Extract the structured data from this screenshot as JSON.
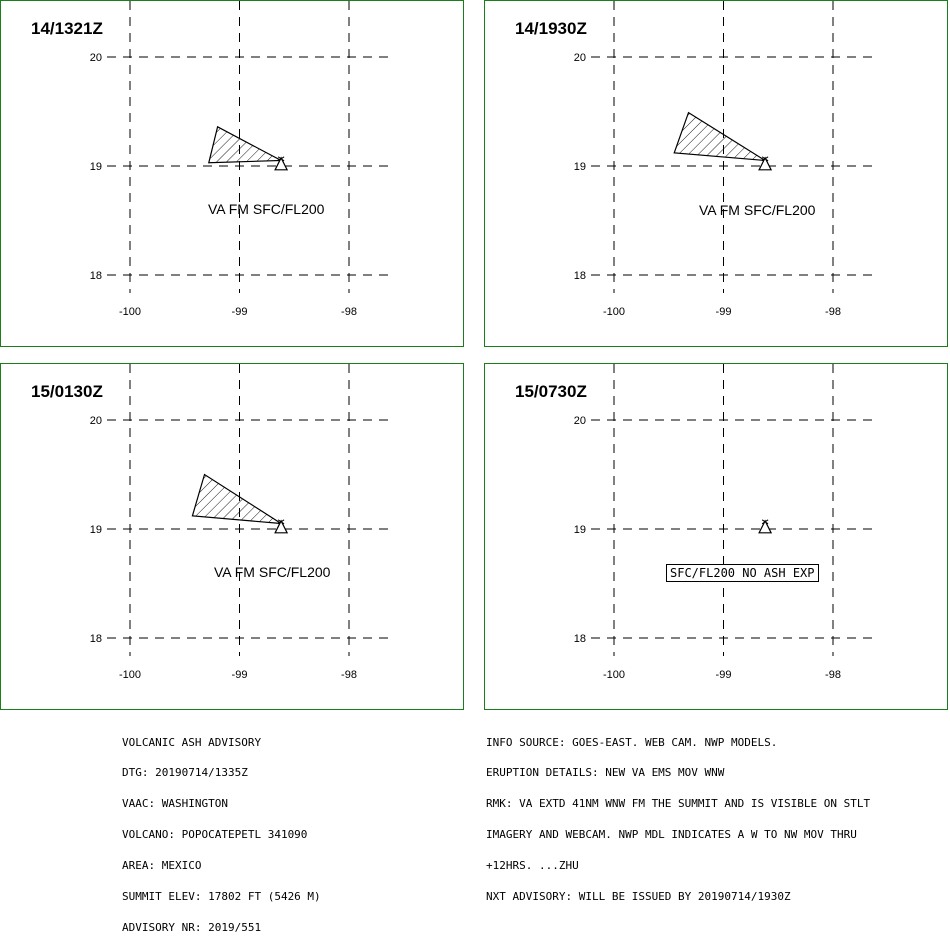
{
  "panels": [
    {
      "time": "14/1321Z",
      "lat_ticks": [
        "20",
        "19",
        "18"
      ],
      "lon_ticks": [
        "-100",
        "-99",
        "-98"
      ],
      "label": "VA FM SFC/FL200",
      "ash_polygon": [
        [
          -99.28,
          19.03
        ],
        [
          -99.2,
          19.36
        ],
        [
          -98.62,
          19.05
        ]
      ],
      "volcano": [
        -98.62,
        19.02
      ]
    },
    {
      "time": "14/1930Z",
      "lat_ticks": [
        "20",
        "19",
        "18"
      ],
      "lon_ticks": [
        "-100",
        "-99",
        "-98"
      ],
      "label": "VA FM SFC/FL200",
      "ash_polygon": [
        [
          -99.45,
          19.12
        ],
        [
          -99.32,
          19.49
        ],
        [
          -98.62,
          19.05
        ]
      ],
      "volcano": [
        -98.62,
        19.02
      ]
    },
    {
      "time": "15/0130Z",
      "lat_ticks": [
        "20",
        "19",
        "18"
      ],
      "lon_ticks": [
        "-100",
        "-99",
        "-98"
      ],
      "label": "VA FM SFC/FL200",
      "ash_polygon": [
        [
          -99.43,
          19.12
        ],
        [
          -99.32,
          19.5
        ],
        [
          -98.62,
          19.05
        ]
      ],
      "volcano": [
        -98.62,
        19.02
      ]
    },
    {
      "time": "15/0730Z",
      "lat_ticks": [
        "20",
        "19",
        "18"
      ],
      "lon_ticks": [
        "-100",
        "-99",
        "-98"
      ],
      "label": "SFC/FL200 NO ASH EXP",
      "ash_polygon": [],
      "volcano": [
        -98.62,
        19.02
      ]
    }
  ],
  "footer_left": [
    "VOLCANIC ASH ADVISORY",
    "DTG: 20190714/1335Z",
    "VAAC: WASHINGTON",
    "VOLCANO: POPOCATEPETL 341090",
    "AREA: MEXICO",
    "SUMMIT ELEV: 17802 FT (5426 M)",
    "ADVISORY NR: 2019/551"
  ],
  "footer_right": [
    "INFO SOURCE: GOES-EAST. WEB CAM. NWP MODELS.",
    "ERUPTION DETAILS: NEW VA EMS MOV WNW",
    "RMK: VA EXTD 41NM WNW FM THE SUMMIT AND IS VISIBLE ON STLT",
    "IMAGERY AND WEBCAM. NWP MDL INDICATES A W TO NW MOV THRU",
    "+12HRS. ...ZHU",
    "NXT ADVISORY: WILL BE ISSUED BY 20190714/1930Z"
  ],
  "colors": {
    "border": "#1a7f1a",
    "lines": "#000000"
  }
}
